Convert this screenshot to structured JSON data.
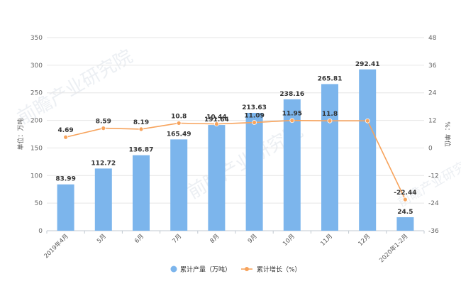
{
  "chart_data": {
    "type": "bar",
    "categories": [
      "2019年4月",
      "5月",
      "6月",
      "7月",
      "8月",
      "9月",
      "10月",
      "11月",
      "12月",
      "2020年1-2月"
    ],
    "series": [
      {
        "name": "累计产量（万吨）",
        "type": "bar",
        "axis": "left",
        "color": "#7cb5ec",
        "values": [
          83.99,
          112.72,
          136.87,
          165.49,
          191.64,
          213.63,
          238.16,
          265.81,
          292.41,
          24.5
        ],
        "labels": [
          "83.99",
          "112.72",
          "136.87",
          "165.49",
          "191.64",
          "213.63",
          "238.16",
          "265.81",
          "292.41",
          "24.5"
        ]
      },
      {
        "name": "累计增长（%）",
        "type": "line",
        "axis": "right",
        "color": "#f7a35c",
        "values": [
          4.69,
          8.59,
          8.19,
          10.8,
          10.44,
          11.09,
          11.95,
          11.8,
          null,
          -22.44
        ],
        "labels": [
          "4.69",
          "8.59",
          "8.19",
          "10.8",
          "10.44",
          "11.09",
          "11.95",
          "11.8",
          "",
          "-22.44"
        ]
      }
    ],
    "ylabel_left": "单位：万吨",
    "ylabel_right": "%：单位",
    "ylim_left": [
      0,
      350
    ],
    "ylim_right": [
      -36,
      48
    ],
    "yticks_left": [
      "0",
      "50",
      "100",
      "150",
      "200",
      "250",
      "300",
      "350"
    ],
    "yticks_right": [
      "-36",
      "-24",
      "-12",
      "0",
      "12",
      "24",
      "36",
      "48"
    ],
    "grid": true,
    "legend_position": "bottom"
  },
  "watermark": "前瞻产业研究院"
}
